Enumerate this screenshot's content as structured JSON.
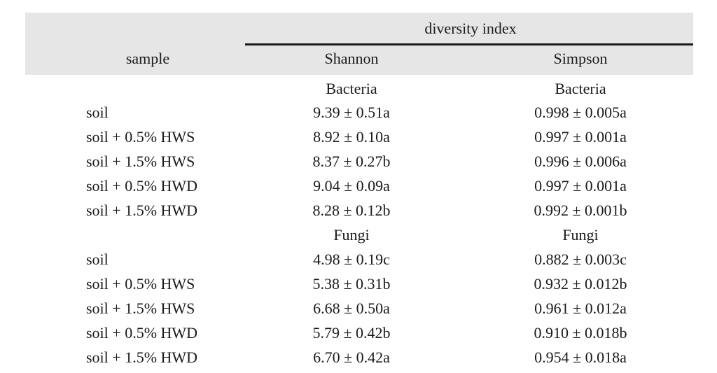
{
  "header": {
    "group_label": "diversity index",
    "sample_label": "sample",
    "col1_label": "Shannon",
    "col2_label": "Simpson"
  },
  "sections": [
    {
      "col1_title": "Bacteria",
      "col2_title": "Bacteria",
      "rows": [
        {
          "sample": "soil",
          "shannon": "9.39 ± 0.51a",
          "simpson": "0.998 ± 0.005a"
        },
        {
          "sample": "soil + 0.5% HWS",
          "shannon": "8.92 ± 0.10a",
          "simpson": "0.997 ± 0.001a"
        },
        {
          "sample": "soil + 1.5% HWS",
          "shannon": "8.37 ± 0.27b",
          "simpson": "0.996 ± 0.006a"
        },
        {
          "sample": "soil + 0.5% HWD",
          "shannon": "9.04 ± 0.09a",
          "simpson": "0.997 ± 0.001a"
        },
        {
          "sample": "soil + 1.5% HWD",
          "shannon": "8.28 ± 0.12b",
          "simpson": "0.992 ± 0.001b"
        }
      ]
    },
    {
      "col1_title": "Fungi",
      "col2_title": "Fungi",
      "rows": [
        {
          "sample": "soil",
          "shannon": "4.98 ± 0.19c",
          "simpson": "0.882 ± 0.003c"
        },
        {
          "sample": "soil + 0.5% HWS",
          "shannon": "5.38 ± 0.31b",
          "simpson": "0.932 ± 0.012b"
        },
        {
          "sample": "soil + 1.5% HWS",
          "shannon": "6.68 ± 0.50a",
          "simpson": "0.961 ± 0.012a"
        },
        {
          "sample": "soil + 0.5% HWD",
          "shannon": "5.79 ± 0.42b",
          "simpson": "0.910 ± 0.018b"
        },
        {
          "sample": "soil + 1.5% HWD",
          "shannon": "6.70 ± 0.42a",
          "simpson": "0.954 ± 0.018a"
        }
      ]
    }
  ]
}
